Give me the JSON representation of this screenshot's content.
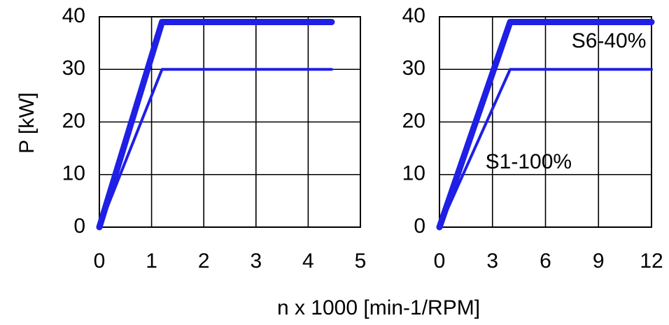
{
  "colors": {
    "series": "#1f1fe6",
    "frame": "#000000",
    "grid": "#000000"
  },
  "ylabel": "P [kW]",
  "xlabel": "n x 1000 [min-1/RPM]",
  "chart_data": [
    {
      "type": "line",
      "grid": true,
      "xlim": [
        0,
        5
      ],
      "ylim": [
        0,
        40
      ],
      "xticks": [
        "0",
        "1",
        "2",
        "3",
        "4",
        "5"
      ],
      "yticks": [
        "0",
        "10",
        "20",
        "30",
        "40"
      ],
      "series": [
        {
          "points": [
            [
              0,
              0
            ],
            [
              1.2,
              39
            ],
            [
              4.45,
              39
            ]
          ],
          "weight": "thick"
        },
        {
          "points": [
            [
              0,
              0
            ],
            [
              1.2,
              30
            ],
            [
              4.45,
              30
            ]
          ],
          "weight": "thin"
        }
      ],
      "annotations": []
    },
    {
      "type": "line",
      "grid": true,
      "xlim": [
        0,
        12
      ],
      "ylim": [
        0,
        40
      ],
      "xticks": [
        "0",
        "3",
        "6",
        "9",
        "12"
      ],
      "yticks": [
        "0",
        "10",
        "20",
        "30",
        "40"
      ],
      "series": [
        {
          "name": "S6-40%",
          "points": [
            [
              0,
              0
            ],
            [
              4.0,
              39
            ],
            [
              12,
              39
            ]
          ],
          "weight": "thick"
        },
        {
          "name": "S1-100%",
          "points": [
            [
              0,
              0
            ],
            [
              4.0,
              30
            ],
            [
              12,
              30
            ]
          ],
          "weight": "thin"
        }
      ],
      "annotations": [
        {
          "text": "S6-40%",
          "x": 11.7,
          "y": 35.2,
          "anchor": "end"
        },
        {
          "text": "S1-100%",
          "x": 2.6,
          "y": 12.2,
          "anchor": "start"
        }
      ]
    }
  ]
}
